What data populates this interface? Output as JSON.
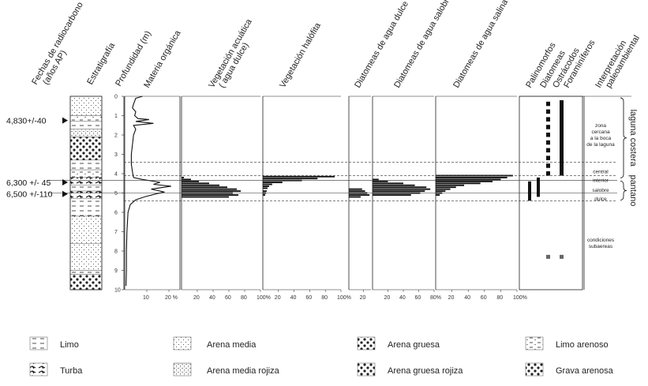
{
  "chart_data": {
    "type": "bar",
    "depth_axis": {
      "label": "Profundidad (m)",
      "min": 0,
      "max": 10,
      "ticks": [
        "0",
        "1",
        "2",
        "3",
        "4",
        "5",
        "6",
        "7",
        "8",
        "9",
        "10"
      ]
    },
    "column_headers": {
      "dates": "Fechas de radiocarbono (años AP)",
      "strat": "Estratigrafía",
      "depth": "Profundidad (m)",
      "org": "Materia orgánica",
      "aq": "Vegetación acuática ( agua dulce)",
      "hal": "Vegetación halófita",
      "dd": "Diatomeas de agua dulce",
      "ds": "Diatomeas de agua salobre",
      "dsa": "Diatomeas de agua salina",
      "pal": "Palinomorfos",
      "diat": "Diatomeas",
      "ost": "Ostrácodos",
      "for": "Foraminíferos",
      "interp": "Interpretación paleoambiental"
    },
    "dates": [
      {
        "label": "4,830+/-40",
        "depth": 1.25
      },
      {
        "label": "6,300 +/- 45",
        "depth": 4.45
      },
      {
        "label": "6,500 +/-110",
        "depth": 5.05
      }
    ],
    "organic_matter": {
      "ticks": [
        "10",
        "20 %"
      ],
      "xmax": 25,
      "points": [
        [
          0,
          8
        ],
        [
          0.1,
          5
        ],
        [
          0.4,
          4
        ],
        [
          0.6,
          3.5
        ],
        [
          0.8,
          5
        ],
        [
          1.0,
          4.5
        ],
        [
          1.15,
          6
        ],
        [
          1.2,
          11
        ],
        [
          1.3,
          5
        ],
        [
          1.4,
          13
        ],
        [
          1.5,
          4
        ],
        [
          1.7,
          5
        ],
        [
          2.0,
          4
        ],
        [
          2.5,
          3.5
        ],
        [
          3.0,
          3
        ],
        [
          3.5,
          3
        ],
        [
          3.9,
          3.5
        ],
        [
          4.2,
          4
        ],
        [
          4.3,
          8
        ],
        [
          4.45,
          16
        ],
        [
          4.55,
          13
        ],
        [
          4.65,
          21
        ],
        [
          4.8,
          12
        ],
        [
          4.95,
          18
        ],
        [
          5.05,
          14
        ],
        [
          5.2,
          9
        ],
        [
          5.35,
          5
        ],
        [
          5.6,
          2.5
        ],
        [
          6,
          1.5
        ],
        [
          7,
          1
        ],
        [
          8,
          0.8
        ],
        [
          9,
          0.8
        ],
        [
          9.8,
          0.6
        ]
      ]
    },
    "aquatic_freshwater": {
      "ticks": [
        "20",
        "40",
        "60",
        "80",
        "100%"
      ],
      "xmax": 100,
      "bars": [
        [
          4.2,
          3
        ],
        [
          4.3,
          12
        ],
        [
          4.4,
          22
        ],
        [
          4.5,
          35
        ],
        [
          4.6,
          48
        ],
        [
          4.7,
          58
        ],
        [
          4.8,
          70
        ],
        [
          4.9,
          75
        ],
        [
          5.0,
          65
        ],
        [
          5.1,
          72
        ],
        [
          5.2,
          60
        ]
      ]
    },
    "halophytic": {
      "ticks": [
        "20",
        "40",
        "60",
        "80",
        "100%"
      ],
      "xmax": 100,
      "bars": [
        [
          4.15,
          92
        ],
        [
          4.25,
          70
        ],
        [
          4.35,
          50
        ],
        [
          4.45,
          25
        ],
        [
          4.55,
          12
        ],
        [
          4.65,
          8
        ],
        [
          4.75,
          6
        ],
        [
          4.9,
          5
        ],
        [
          5.0,
          4
        ],
        [
          5.1,
          3
        ]
      ]
    },
    "diatoms_fresh": {
      "ticks": [
        "20"
      ],
      "xmax": 30,
      "bars": [
        [
          4.8,
          18
        ],
        [
          4.9,
          22
        ],
        [
          5.0,
          25
        ],
        [
          5.1,
          28
        ],
        [
          5.2,
          16
        ]
      ]
    },
    "diatoms_brackish": {
      "ticks": [
        "20",
        "40",
        "60",
        "80%"
      ],
      "xmax": 80,
      "bars": [
        [
          4.3,
          8
        ],
        [
          4.4,
          20
        ],
        [
          4.5,
          40
        ],
        [
          4.6,
          55
        ],
        [
          4.7,
          70
        ],
        [
          4.8,
          75
        ],
        [
          4.9,
          68
        ],
        [
          5.0,
          62
        ],
        [
          5.1,
          50
        ]
      ]
    },
    "diatoms_saline": {
      "ticks": [
        "20",
        "40",
        "60",
        "80",
        "100%"
      ],
      "xmax": 100,
      "bars": [
        [
          4.1,
          95
        ],
        [
          4.2,
          88
        ],
        [
          4.3,
          80
        ],
        [
          4.4,
          70
        ],
        [
          4.5,
          55
        ],
        [
          4.6,
          35
        ],
        [
          4.7,
          25
        ],
        [
          4.8,
          18
        ],
        [
          4.9,
          12
        ],
        [
          5.0,
          8
        ],
        [
          5.1,
          5
        ]
      ]
    },
    "presence": {
      "palinomorfos": [
        [
          4.4,
          5.4
        ]
      ],
      "diatomeas": [
        [
          4.2,
          5.2
        ]
      ],
      "ostracodos_blocks": [
        0.4,
        0.8,
        1.2,
        1.6,
        2.0,
        2.4,
        2.8,
        3.2,
        3.6,
        4.0
      ],
      "ostracodos_point": 8.3,
      "foraminiferos": [
        [
          0.2,
          4.1
        ]
      ],
      "foraminiferos_point": 8.3
    },
    "interpretation": [
      {
        "lines": [
          "zona",
          "cercana",
          "a la boca",
          "de la laguna"
        ],
        "depth": 2.0
      },
      {
        "lines": [
          "central"
        ],
        "depth": 3.9
      },
      {
        "lines": [
          "interior"
        ],
        "depth": 4.35
      },
      {
        "lines": [
          "salobre"
        ],
        "depth": 4.85
      },
      {
        "lines": [
          "dulce"
        ],
        "depth": 5.3
      },
      {
        "lines": [
          "condiciones",
          "subaereas"
        ],
        "depth": 7.6
      }
    ],
    "zones": [
      {
        "label": "laguna costera",
        "from": 0,
        "to": 4.3
      },
      {
        "label": "pantano",
        "from": 4.3,
        "to": 5.45
      }
    ],
    "dashed_depths": [
      3.4,
      4.1,
      5.4
    ],
    "solid_depths": [
      4.35,
      5.0
    ],
    "legend": [
      {
        "label": "Limo",
        "pattern": "limo"
      },
      {
        "label": "Turba",
        "pattern": "turba"
      },
      {
        "label": "Arena media",
        "pattern": "arena-media"
      },
      {
        "label": "Arena media rojiza",
        "pattern": "arena-media-rojiza"
      },
      {
        "label": "Arena gruesa",
        "pattern": "arena-gruesa"
      },
      {
        "label": "Arena gruesa rojiza",
        "pattern": "arena-gruesa-rojiza"
      },
      {
        "label": "Limo arenoso",
        "pattern": "limo-arenoso"
      },
      {
        "label": "Grava arenosa",
        "pattern": "grava-arenosa"
      }
    ]
  }
}
